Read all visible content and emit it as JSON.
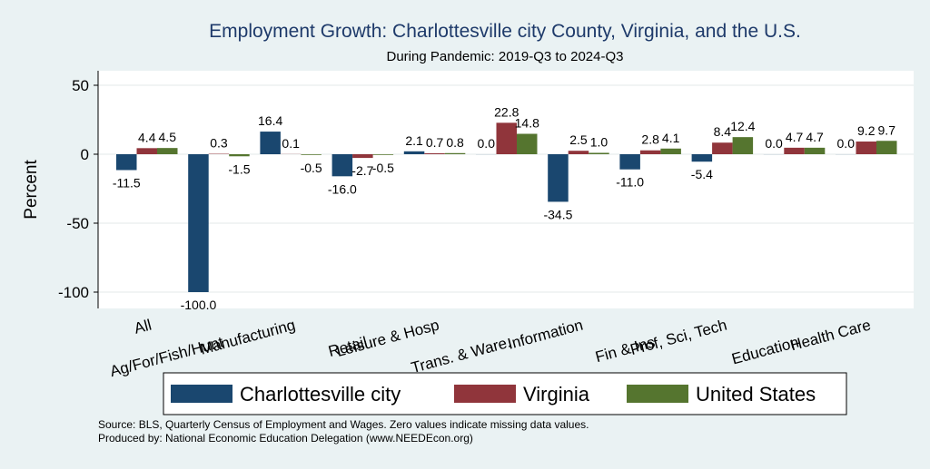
{
  "chart_data": {
    "type": "bar",
    "title": "Employment Growth: Charlottesville city County, Virginia, and the U.S.",
    "subtitle": "During Pandemic: 2019-Q3 to 2024-Q3",
    "ylabel": "Percent",
    "xlabel": "",
    "ylim": [
      -110,
      60
    ],
    "yticks": [
      50,
      0,
      -50,
      -100
    ],
    "ytick_labels": [
      "50",
      "0",
      "-50",
      "-100"
    ],
    "grid": true,
    "legend_position": "bottom",
    "categories": [
      "All",
      "Ag/For/Fish/Hunt",
      "Manufacturing",
      "Retail",
      "Leisure & Hosp",
      "Trans. & Ware.",
      "Information",
      "Fin & Ins",
      "Prof, Sci, Tech",
      "Education",
      "Health Care"
    ],
    "series": [
      {
        "name": "Charlottesville city",
        "color": "#1a476f",
        "values": [
          -11.5,
          -100.0,
          16.4,
          -16.0,
          2.1,
          0.0,
          -34.5,
          -11.0,
          -5.4,
          0.0,
          0.0
        ],
        "labels": [
          "-11.5",
          "-100.0",
          "16.4",
          "-16.0",
          "2.1",
          "0.0",
          "-34.5",
          "-11.0",
          "-5.4",
          "0.0",
          "0.0"
        ]
      },
      {
        "name": "Virginia",
        "color": "#90353b",
        "values": [
          4.4,
          0.3,
          0.1,
          -2.7,
          0.7,
          22.8,
          2.5,
          2.8,
          8.4,
          4.7,
          9.2
        ],
        "labels": [
          "4.4",
          "0.3",
          "0.1",
          "-2.7",
          "0.7",
          "22.8",
          "2.5",
          "2.8",
          "8.4",
          "4.7",
          "9.2"
        ]
      },
      {
        "name": "United States",
        "color": "#55752f",
        "values": [
          4.5,
          -1.5,
          -0.5,
          -0.5,
          0.8,
          14.8,
          1.0,
          4.1,
          12.4,
          4.7,
          9.7
        ],
        "labels": [
          "4.5",
          "-1.5",
          "-0.5",
          "-0.5",
          "0.8",
          "14.8",
          "1.0",
          "4.1",
          "12.4",
          "4.7",
          "9.7"
        ]
      }
    ],
    "source_note": "Source: BLS, Quarterly Census of Employment and Wages. Zero values indicate missing data values.",
    "produced_by": "Produced by: National Economic Education Delegation (www.NEEDEcon.org)"
  }
}
